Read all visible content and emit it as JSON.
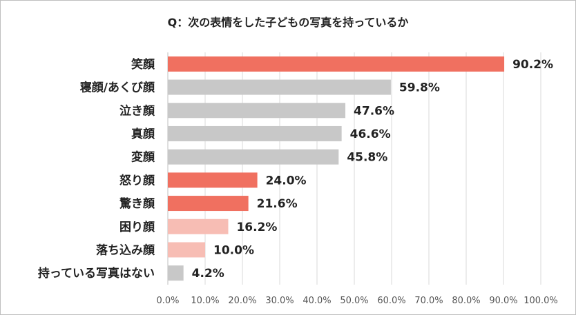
{
  "chart_data": {
    "type": "bar",
    "orientation": "horizontal",
    "title": "Q：次の表情をした子どもの写真を持っているか",
    "categories": [
      "笑顔",
      "寝顔/あくび顔",
      "泣き顔",
      "真顔",
      "変顔",
      "怒り顔",
      "驚き顔",
      "困り顔",
      "落ち込み顔",
      "持っている写真はない"
    ],
    "values": [
      90.2,
      59.8,
      47.6,
      46.6,
      45.8,
      24.0,
      21.6,
      16.2,
      10.0,
      4.2
    ],
    "value_labels": [
      "90.2%",
      "59.8%",
      "47.6%",
      "46.6%",
      "45.8%",
      "24.0%",
      "21.6%",
      "16.2%",
      "10.0%",
      "4.2%"
    ],
    "bar_colors": [
      "#f07060",
      "#c8c8c8",
      "#c8c8c8",
      "#c8c8c8",
      "#c8c8c8",
      "#f07060",
      "#f07060",
      "#f7bdb4",
      "#f7bdb4",
      "#c8c8c8"
    ],
    "xlim": [
      0,
      100
    ],
    "x_ticks": [
      0,
      10,
      20,
      30,
      40,
      50,
      60,
      70,
      80,
      90,
      100
    ],
    "x_tick_labels": [
      "0.0%",
      "10.0%",
      "20.0%",
      "30.0%",
      "40.0%",
      "50.0%",
      "60.0%",
      "70.0%",
      "80.0%",
      "90.0%",
      "100.0%"
    ],
    "grid": true,
    "legend": "none"
  }
}
